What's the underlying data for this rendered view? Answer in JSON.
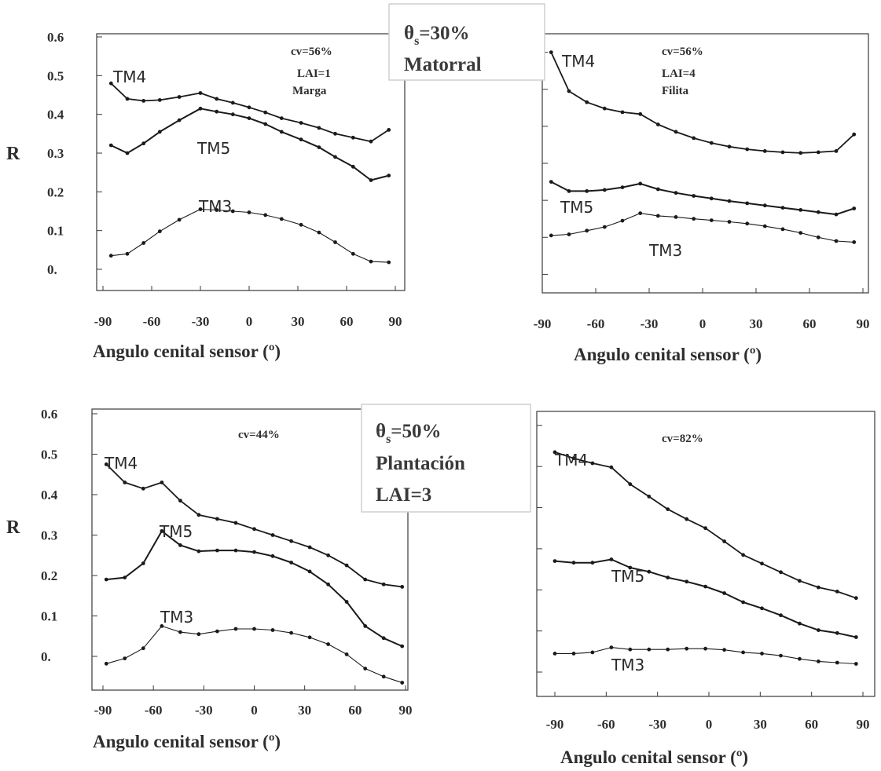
{
  "figure": {
    "row1_box": {
      "theta": "θ",
      "sub": "s",
      "value": "=30%",
      "line2": "Matorral"
    },
    "row2_box": {
      "theta": "θ",
      "sub": "s",
      "value": "=50%",
      "line2": "Plantación",
      "line3": "LAI=3"
    },
    "row1_y_label": "R",
    "row2_y_label": "R"
  },
  "colors": {
    "axis": "#3a3a3a",
    "series": "#1a1a1a",
    "text": "#2e2e2e"
  },
  "chart_data": [
    {
      "type": "line",
      "xlabel": "Angulo cenital sensor (º)",
      "ylabel": "R",
      "xlim": [
        -90,
        90
      ],
      "ylim": [
        -0.05,
        0.65
      ],
      "x_ticks": [
        "-90",
        "-60",
        "-30",
        "0",
        "30",
        "60",
        "90"
      ],
      "y_ticks": [
        "0.6",
        "0.5",
        "0.4",
        "0.3",
        "0.2",
        "0.1",
        "0."
      ],
      "annotations": [
        "cv=56%",
        "LAI=1",
        "Marga"
      ],
      "series": [
        {
          "name": "TM4",
          "x": [
            -85,
            -75,
            -65,
            -55,
            -43,
            -30,
            -20,
            -10,
            0,
            10,
            20,
            32,
            43,
            53,
            64,
            75,
            86
          ],
          "y": [
            0.48,
            0.44,
            0.435,
            0.437,
            0.445,
            0.455,
            0.44,
            0.43,
            0.418,
            0.405,
            0.39,
            0.378,
            0.365,
            0.35,
            0.34,
            0.33,
            0.36
          ]
        },
        {
          "name": "TM5",
          "x": [
            -85,
            -75,
            -65,
            -55,
            -43,
            -30,
            -20,
            -10,
            0,
            10,
            20,
            32,
            43,
            53,
            64,
            75,
            86
          ],
          "y": [
            0.32,
            0.3,
            0.325,
            0.355,
            0.385,
            0.415,
            0.407,
            0.4,
            0.39,
            0.375,
            0.355,
            0.335,
            0.315,
            0.29,
            0.265,
            0.23,
            0.242
          ]
        },
        {
          "name": "TM3",
          "x": [
            -85,
            -75,
            -65,
            -55,
            -43,
            -30,
            -20,
            -10,
            0,
            10,
            20,
            32,
            43,
            53,
            64,
            75,
            86
          ],
          "y": [
            0.035,
            0.04,
            0.068,
            0.098,
            0.128,
            0.155,
            0.153,
            0.15,
            0.147,
            0.14,
            0.13,
            0.115,
            0.095,
            0.07,
            0.04,
            0.02,
            0.018
          ]
        }
      ]
    },
    {
      "type": "line",
      "xlabel": "Angulo cenital sensor (º)",
      "ylabel": "R",
      "xlim": [
        -90,
        90
      ],
      "ylim": [
        -0.05,
        0.65
      ],
      "x_ticks": [
        "-90",
        "-60",
        "-30",
        "0",
        "30",
        "60",
        "90"
      ],
      "y_ticks": [],
      "annotations": [
        "cv=56%",
        "LAI=4",
        "Filita"
      ],
      "series": [
        {
          "name": "TM4",
          "x": [
            -85,
            -75,
            -65,
            -55,
            -45,
            -35,
            -25,
            -15,
            -5,
            5,
            15,
            25,
            35,
            45,
            55,
            65,
            75,
            85
          ],
          "y": [
            0.6,
            0.495,
            0.465,
            0.448,
            0.438,
            0.433,
            0.405,
            0.385,
            0.368,
            0.355,
            0.345,
            0.338,
            0.333,
            0.33,
            0.328,
            0.33,
            0.333,
            0.378
          ]
        },
        {
          "name": "TM5",
          "x": [
            -85,
            -75,
            -65,
            -55,
            -45,
            -35,
            -25,
            -15,
            -5,
            5,
            15,
            25,
            35,
            45,
            55,
            65,
            75,
            85
          ],
          "y": [
            0.25,
            0.225,
            0.225,
            0.228,
            0.235,
            0.245,
            0.23,
            0.22,
            0.212,
            0.205,
            0.198,
            0.192,
            0.186,
            0.18,
            0.174,
            0.168,
            0.162,
            0.178
          ]
        },
        {
          "name": "TM3",
          "x": [
            -85,
            -75,
            -65,
            -55,
            -45,
            -35,
            -25,
            -15,
            -5,
            5,
            15,
            25,
            35,
            45,
            55,
            65,
            75,
            85
          ],
          "y": [
            0.105,
            0.108,
            0.118,
            0.128,
            0.145,
            0.165,
            0.158,
            0.155,
            0.15,
            0.146,
            0.142,
            0.137,
            0.13,
            0.122,
            0.112,
            0.1,
            0.09,
            0.087
          ]
        }
      ]
    },
    {
      "type": "line",
      "xlabel": "Angulo cenital sensor (º)",
      "ylabel": "R",
      "xlim": [
        -90,
        90
      ],
      "ylim": [
        -0.05,
        0.65
      ],
      "x_ticks": [
        "-90",
        "-60",
        "-30",
        "0",
        "30",
        "60",
        "90"
      ],
      "y_ticks": [
        "0.6",
        "0.5",
        "0.4",
        "0.3",
        "0.2",
        "0.1",
        "0."
      ],
      "annotations": [
        "cv=44%"
      ],
      "series": [
        {
          "name": "TM4",
          "x": [
            -88,
            -77,
            -66,
            -55,
            -44,
            -33,
            -22,
            -11,
            0,
            11,
            22,
            33,
            44,
            55,
            66,
            77,
            88
          ],
          "y": [
            0.475,
            0.43,
            0.415,
            0.43,
            0.385,
            0.35,
            0.34,
            0.33,
            0.315,
            0.3,
            0.285,
            0.27,
            0.25,
            0.225,
            0.19,
            0.178,
            0.172
          ]
        },
        {
          "name": "TM5",
          "x": [
            -88,
            -77,
            -66,
            -55,
            -44,
            -33,
            -22,
            -11,
            0,
            11,
            22,
            33,
            44,
            55,
            66,
            77,
            88
          ],
          "y": [
            0.19,
            0.195,
            0.23,
            0.31,
            0.275,
            0.26,
            0.262,
            0.262,
            0.258,
            0.248,
            0.232,
            0.21,
            0.178,
            0.135,
            0.075,
            0.045,
            0.025
          ]
        },
        {
          "name": "TM3",
          "x": [
            -88,
            -77,
            -66,
            -55,
            -44,
            -33,
            -22,
            -11,
            0,
            11,
            22,
            33,
            44,
            55,
            66,
            77,
            88
          ],
          "y": [
            -0.018,
            -0.005,
            0.02,
            0.075,
            0.06,
            0.055,
            0.062,
            0.068,
            0.068,
            0.065,
            0.058,
            0.047,
            0.03,
            0.005,
            -0.03,
            -0.05,
            -0.065
          ]
        }
      ]
    },
    {
      "type": "line",
      "xlabel": "Angulo cenital sensor (º)",
      "ylabel": "R",
      "xlim": [
        -90,
        90
      ],
      "ylim": [
        -0.05,
        0.65
      ],
      "x_ticks": [
        "-90",
        "-60",
        "-30",
        "0",
        "30",
        "60",
        "90"
      ],
      "y_ticks": [],
      "annotations": [
        "cv=82%"
      ],
      "series": [
        {
          "name": "TM4",
          "x": [
            -90,
            -79,
            -68,
            -57,
            -46,
            -35,
            -24,
            -13,
            -2,
            9,
            20,
            31,
            42,
            53,
            64,
            75,
            86
          ],
          "y": [
            0.535,
            0.52,
            0.508,
            0.498,
            0.457,
            0.427,
            0.396,
            0.372,
            0.35,
            0.318,
            0.285,
            0.264,
            0.243,
            0.222,
            0.206,
            0.196,
            0.18
          ]
        },
        {
          "name": "TM5",
          "x": [
            -90,
            -79,
            -68,
            -57,
            -46,
            -35,
            -24,
            -13,
            -2,
            9,
            20,
            31,
            42,
            53,
            64,
            75,
            86
          ],
          "y": [
            0.27,
            0.266,
            0.266,
            0.274,
            0.254,
            0.244,
            0.23,
            0.22,
            0.208,
            0.192,
            0.17,
            0.155,
            0.138,
            0.118,
            0.102,
            0.095,
            0.085
          ]
        },
        {
          "name": "TM3",
          "x": [
            -90,
            -79,
            -68,
            -57,
            -46,
            -35,
            -24,
            -13,
            -2,
            9,
            20,
            31,
            42,
            53,
            64,
            75,
            86
          ],
          "y": [
            0.045,
            0.045,
            0.048,
            0.06,
            0.055,
            0.055,
            0.055,
            0.057,
            0.057,
            0.054,
            0.048,
            0.045,
            0.04,
            0.032,
            0.026,
            0.023,
            0.02
          ]
        }
      ]
    }
  ]
}
